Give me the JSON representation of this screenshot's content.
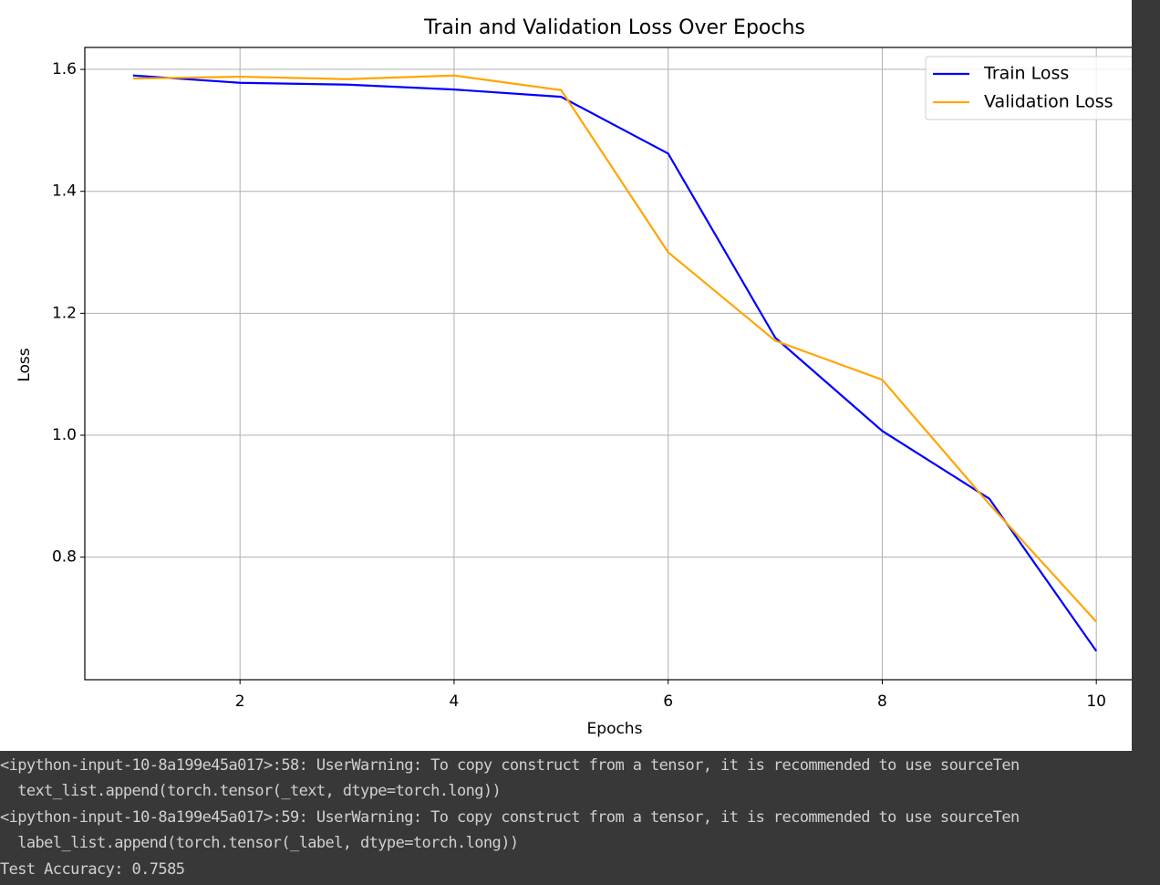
{
  "chart_data": {
    "type": "line",
    "title": "Train and Validation Loss Over Epochs",
    "xlabel": "Epochs",
    "ylabel": "Loss",
    "x": [
      1,
      2,
      3,
      4,
      5,
      6,
      7,
      8,
      9,
      10
    ],
    "series": [
      {
        "name": "Train Loss",
        "color": "#0000ff",
        "values": [
          1.59,
          1.578,
          1.575,
          1.567,
          1.555,
          1.462,
          1.16,
          1.007,
          0.896,
          0.646
        ]
      },
      {
        "name": "Validation Loss",
        "color": "#ffa500",
        "values": [
          1.585,
          1.588,
          1.584,
          1.59,
          1.566,
          1.3,
          1.155,
          1.091,
          0.887,
          0.694
        ]
      }
    ],
    "xlim": [
      0.55,
      10.45
    ],
    "ylim": [
      0.599,
      1.636
    ],
    "xticks": [
      2,
      4,
      6,
      8,
      10
    ],
    "yticks": [
      0.8,
      {
        "value": 1,
        "label": "1.0"
      },
      1.2,
      1.4,
      1.6
    ],
    "grid": true,
    "legend": "upper right"
  },
  "console": {
    "lines": [
      "<ipython-input-10-8a199e45a017>:58: UserWarning: To copy construct from a tensor, it is recommended to use sourceTen",
      "  text_list.append(torch.tensor(_text, dtype=torch.long))",
      "<ipython-input-10-8a199e45a017>:59: UserWarning: To copy construct from a tensor, it is recommended to use sourceTen",
      "  label_list.append(torch.tensor(_label, dtype=torch.long))",
      "Test Accuracy: 0.7585"
    ]
  }
}
